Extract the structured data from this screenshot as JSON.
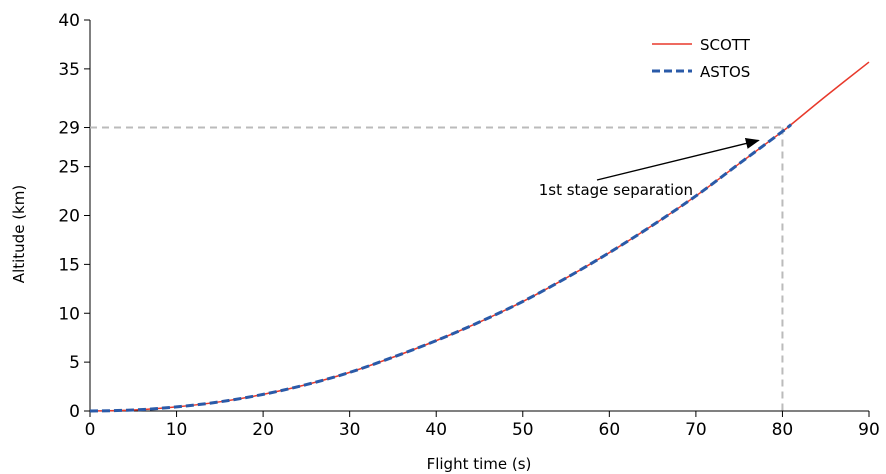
{
  "chart_data": {
    "type": "line",
    "xlabel": "Flight time (s)",
    "ylabel": "Altitude (km)",
    "xlim": [
      0,
      90
    ],
    "ylim": [
      0,
      40
    ],
    "xticks": [
      0,
      10,
      20,
      30,
      40,
      50,
      60,
      70,
      80,
      90
    ],
    "yticks": [
      0,
      5,
      10,
      15,
      20,
      25,
      29,
      35,
      40
    ],
    "grid": false,
    "legend_position": "top-right",
    "series": [
      {
        "name": "SCOTT",
        "style": "solid",
        "color": "#e8392b",
        "x": [
          0,
          5,
          10,
          15,
          20,
          25,
          30,
          35,
          40,
          45,
          50,
          55,
          60,
          65,
          70,
          75,
          80,
          81,
          85,
          90
        ],
        "y": [
          0,
          0.1,
          0.42,
          0.94,
          1.7,
          2.7,
          3.95,
          5.5,
          7.2,
          9.1,
          11.2,
          13.6,
          16.2,
          19.0,
          22.0,
          25.3,
          28.6,
          29.3,
          32.2,
          35.7
        ]
      },
      {
        "name": "ASTOS",
        "style": "dashed",
        "color": "#2a5aa8",
        "x": [
          0,
          5,
          10,
          15,
          20,
          25,
          30,
          35,
          40,
          45,
          50,
          55,
          60,
          65,
          70,
          75,
          80,
          81
        ],
        "y": [
          0,
          0.1,
          0.42,
          0.94,
          1.7,
          2.7,
          3.95,
          5.5,
          7.2,
          9.1,
          11.2,
          13.6,
          16.2,
          19.0,
          22.0,
          25.3,
          28.6,
          29.3
        ]
      }
    ],
    "reference_lines": {
      "x": 80,
      "y": 29,
      "color": "#bbbbbb",
      "style": "dashed"
    },
    "annotations": [
      {
        "text": "1st stage separation",
        "arrow_to": [
          80,
          28.5
        ],
        "text_at": [
          60,
          23
        ]
      }
    ]
  }
}
